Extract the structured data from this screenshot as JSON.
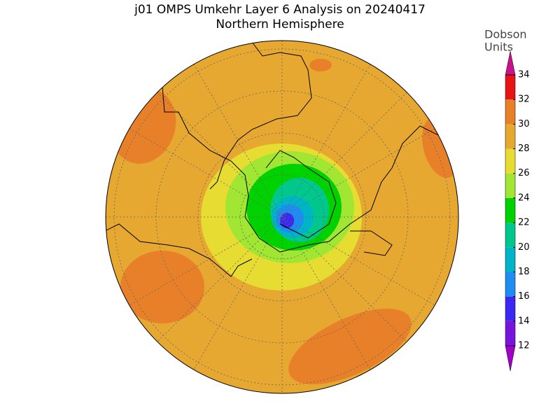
{
  "title": "j01 OMPS Umkehr Layer 6 Analysis on 20240417",
  "subtitle": "Northern Hemisphere",
  "colorbar": {
    "label_lines": [
      "Dobson",
      "Units"
    ],
    "ticks": [
      12,
      14,
      16,
      18,
      20,
      22,
      24,
      26,
      28,
      30,
      32,
      34
    ],
    "colors": [
      "#7814dc",
      "#3c28f0",
      "#1e8cf0",
      "#00b4c8",
      "#00c88c",
      "#00d200",
      "#a0e632",
      "#e6dc32",
      "#e6a830",
      "#e8802a",
      "#e61414"
    ],
    "under_color": "#a000c8",
    "over_color": "#c8148c"
  }
}
